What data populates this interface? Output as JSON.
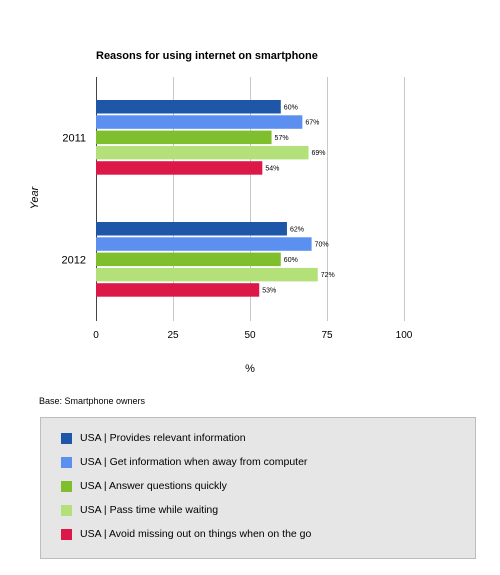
{
  "chart_data": {
    "type": "bar",
    "orientation": "horizontal",
    "title": "Reasons for using internet on smartphone",
    "xlabel": "%",
    "ylabel": "Year",
    "categories": [
      "2011",
      "2012"
    ],
    "xlim": [
      0,
      100
    ],
    "xticks": [
      0,
      25,
      50,
      75,
      100
    ],
    "grid": true,
    "legend_position": "bottom",
    "note": "Base: Smartphone owners",
    "series": [
      {
        "name": "USA | Provides relevant information",
        "color": "#1f57a8",
        "values": [
          60,
          62
        ],
        "labels": [
          "60%",
          "62%"
        ]
      },
      {
        "name": "USA | Get information when away from computer",
        "color": "#5b8ff0",
        "values": [
          67,
          70
        ],
        "labels": [
          "67%",
          "70%"
        ]
      },
      {
        "name": "USA | Answer questions quickly",
        "color": "#7fbf2d",
        "values": [
          57,
          60
        ],
        "labels": [
          "57%",
          "60%"
        ]
      },
      {
        "name": "USA | Pass time while waiting",
        "color": "#b4e07a",
        "values": [
          69,
          72
        ],
        "labels": [
          "69%",
          "72%"
        ]
      },
      {
        "name": "USA | Avoid missing out on things when on the go",
        "color": "#dc1848",
        "values": [
          54,
          53
        ],
        "labels": [
          "54%",
          "53%"
        ]
      }
    ]
  }
}
